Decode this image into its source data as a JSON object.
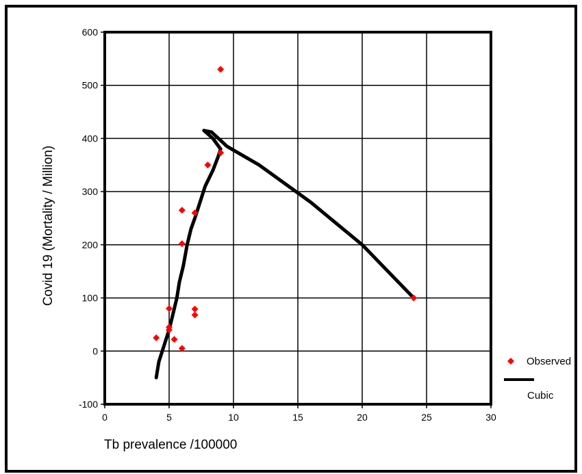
{
  "chart_data": {
    "type": "scatter",
    "xlabel": "Tb prevalence /100000",
    "ylabel": "Covid 19 (Mortality / Million)",
    "xlim": [
      0,
      30
    ],
    "ylim": [
      -100,
      600
    ],
    "x_ticks": [
      0,
      5,
      10,
      15,
      20,
      25,
      30
    ],
    "y_ticks": [
      -100,
      0,
      100,
      200,
      300,
      400,
      500,
      600
    ],
    "grid": true,
    "legend_position": "right",
    "series": [
      {
        "name": "Observed",
        "kind": "scatter",
        "marker": "diamond",
        "color": "#ff0000",
        "points": [
          [
            4,
            25
          ],
          [
            5,
            80
          ],
          [
            5,
            45
          ],
          [
            5,
            40
          ],
          [
            5.4,
            22
          ],
          [
            6,
            5
          ],
          [
            6,
            265
          ],
          [
            6,
            202
          ],
          [
            7,
            260
          ],
          [
            7,
            79
          ],
          [
            7,
            68
          ],
          [
            8,
            350
          ],
          [
            9,
            373
          ],
          [
            9,
            530
          ],
          [
            24,
            100
          ]
        ]
      },
      {
        "name": "Cubic",
        "kind": "line",
        "color": "#000000",
        "points": [
          [
            4,
            -50
          ],
          [
            4.2,
            -20
          ],
          [
            4.6,
            10
          ],
          [
            5,
            40
          ],
          [
            5.2,
            60
          ],
          [
            5.6,
            100
          ],
          [
            5.8,
            130
          ],
          [
            6.1,
            160
          ],
          [
            6.4,
            200
          ],
          [
            6.7,
            230
          ],
          [
            7,
            250
          ],
          [
            7.4,
            280
          ],
          [
            7.8,
            310
          ],
          [
            8.4,
            340
          ],
          [
            8.8,
            365
          ],
          [
            9,
            380
          ],
          [
            8.4,
            400
          ],
          [
            7.7,
            415
          ],
          [
            8.3,
            412
          ],
          [
            9.5,
            385
          ],
          [
            12,
            350
          ],
          [
            16,
            280
          ],
          [
            20,
            200
          ],
          [
            24,
            100
          ]
        ]
      }
    ]
  }
}
